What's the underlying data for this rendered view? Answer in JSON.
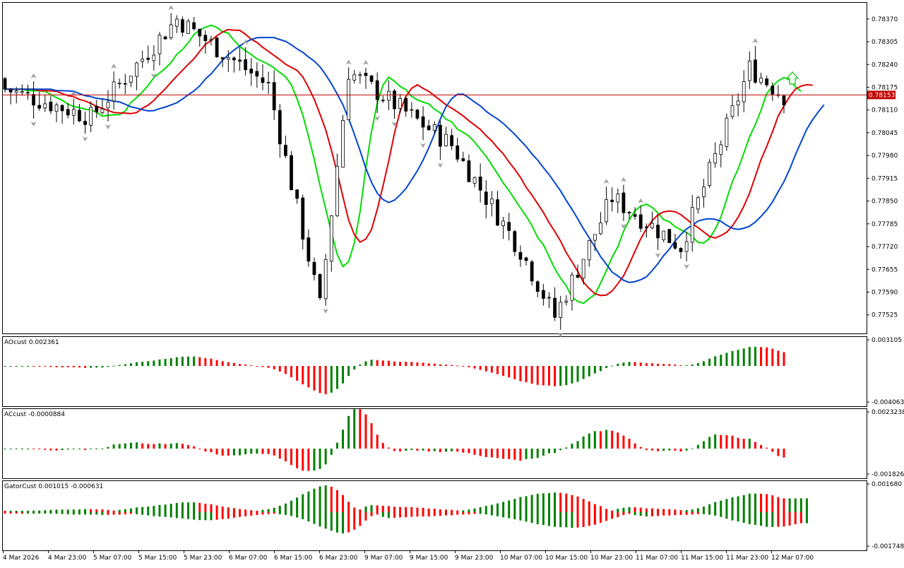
{
  "colors": {
    "background": "#ffffff",
    "frame": "#000000",
    "candle_bull_fill": "#ffffff",
    "candle_bear_fill": "#000000",
    "price_line": "#c00000",
    "price_label_bg": "#c00000",
    "ma_fast": "#00dd00",
    "ma_mid": "#dd0000",
    "ma_slow": "#0044cc",
    "fractal": "#a0a0a0",
    "arrow_up": "#33cc33",
    "hist_up": "#008000",
    "hist_down": "#ff0000"
  },
  "icons": {
    "fractal": "fractal-arrow-icon",
    "signal": "up-arrow-icon"
  },
  "main_panel": {
    "price_label": "0.78153",
    "y_ticks": [
      "0.78370",
      "0.78305",
      "0.78240",
      "0.78175",
      "0.78110",
      "0.78045",
      "0.77980",
      "0.77915",
      "0.77850",
      "0.77785",
      "0.77720",
      "0.77655",
      "0.77590",
      "0.77525"
    ]
  },
  "subpanels": [
    {
      "id": "ao",
      "label": "AOcust 0.002361",
      "top_tick": "0.003105",
      "bottom_tick": "-0.004063"
    },
    {
      "id": "ac",
      "label": "ACcust -0.0000884",
      "top_tick": "0.0023238",
      "bottom_tick": "-0.0018261"
    },
    {
      "id": "gator",
      "label": "GatorCust 0.001015 -0.000631",
      "top_tick": "0.001680",
      "bottom_tick": "-0.001748"
    }
  ],
  "x_axis": {
    "labels": [
      "4 Mar 2026",
      "4 Mar 23:00",
      "5 Mar 07:00",
      "5 Mar 15:00",
      "5 Mar 23:00",
      "6 Mar 07:00",
      "6 Mar 15:00",
      "6 Mar 23:00",
      "9 Mar 07:00",
      "9 Mar 15:00",
      "9 Mar 23:00",
      "10 Mar 07:00",
      "10 Mar 15:00",
      "10 Mar 23:00",
      "11 Mar 07:00",
      "11 Mar 15:00",
      "11 Mar 23:00",
      "12 Mar 07:00"
    ]
  },
  "chart_data": {
    "type": "candlestick",
    "symbol_price_current": 0.78153,
    "ylim": [
      0.7748,
      0.7841
    ],
    "candle_count": 137,
    "key_prices": [
      {
        "bar": 0,
        "close": 0.7817
      },
      {
        "bar": 15,
        "close": 0.7809
      },
      {
        "bar": 30,
        "close": 0.7837
      },
      {
        "bar": 46,
        "close": 0.7818
      },
      {
        "bar": 55,
        "close": 0.7755
      },
      {
        "bar": 60,
        "close": 0.7822
      },
      {
        "bar": 78,
        "close": 0.7801
      },
      {
        "bar": 90,
        "close": 0.7771
      },
      {
        "bar": 96,
        "close": 0.7752
      },
      {
        "bar": 106,
        "close": 0.7786
      },
      {
        "bar": 118,
        "close": 0.7772
      },
      {
        "bar": 130,
        "close": 0.7823
      },
      {
        "bar": 136,
        "close": 0.7815
      }
    ],
    "moving_averages": [
      {
        "name": "",
        "color": "#00dd00"
      },
      {
        "name": "",
        "color": "#dd0000"
      },
      {
        "name": "",
        "color": "#0044cc"
      }
    ],
    "indicators": [
      {
        "name": "AOcust",
        "value": 0.002361,
        "type": "histogram"
      },
      {
        "name": "ACcust",
        "value": -8.84e-05,
        "type": "histogram"
      },
      {
        "name": "GatorCust",
        "values": [
          0.001015,
          -0.000631
        ],
        "type": "histogram"
      }
    ]
  }
}
